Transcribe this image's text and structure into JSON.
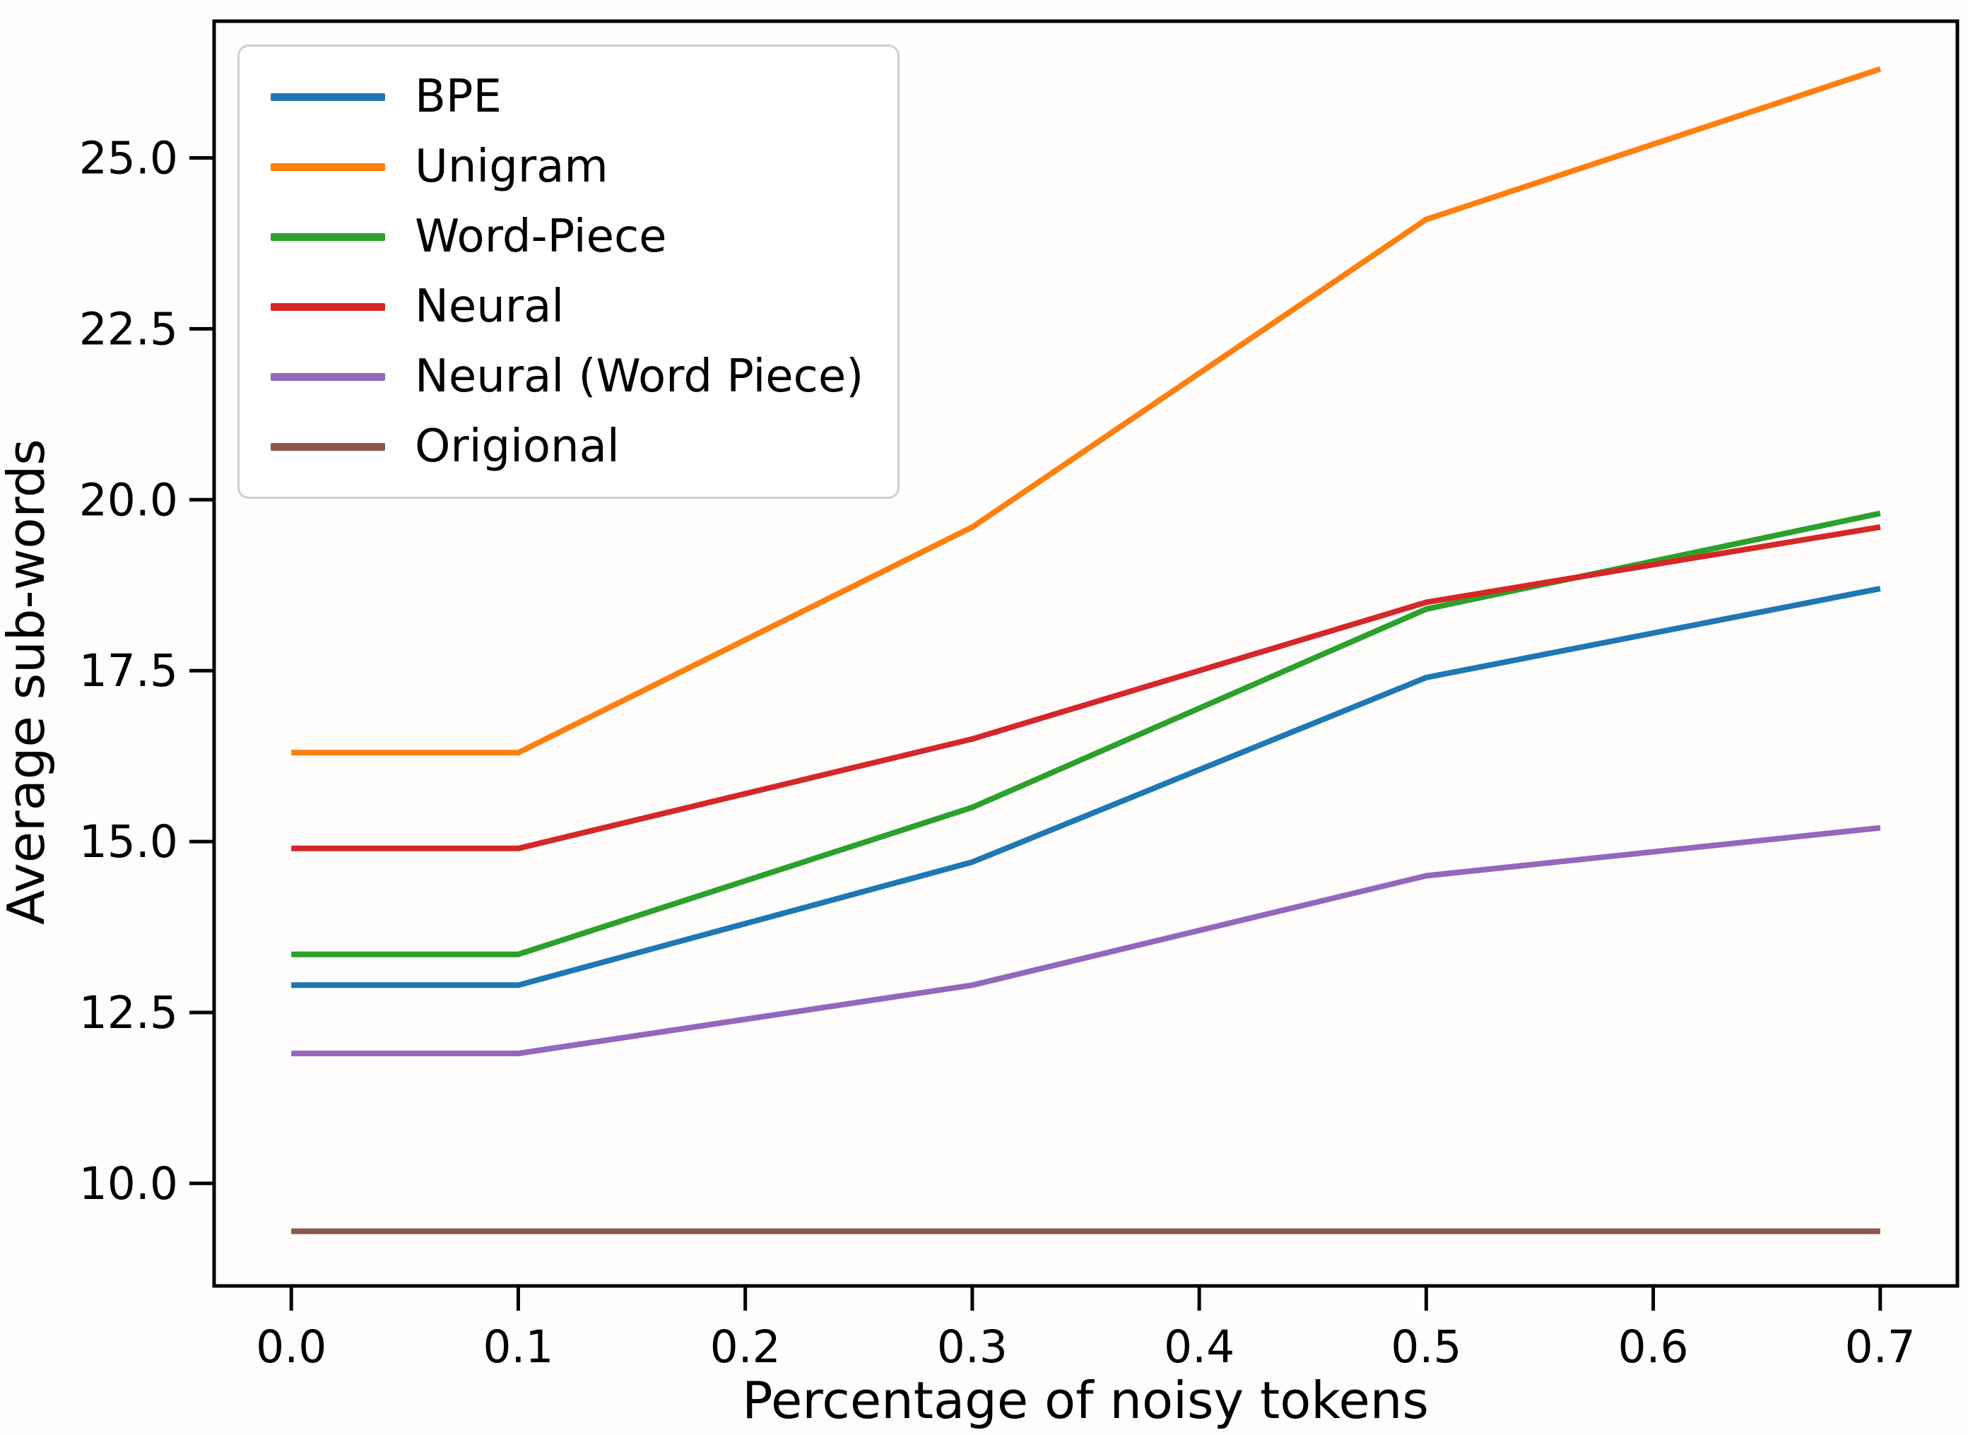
{
  "figure": {
    "background": "#ffffff",
    "axis_color": "#000000"
  },
  "chart_data": {
    "type": "line",
    "title": "",
    "xlabel": "Percentage of noisy tokens",
    "ylabel": "Average sub-words",
    "x": [
      0.0,
      0.1,
      0.3,
      0.5,
      0.7
    ],
    "series": [
      {
        "name": "BPE",
        "color": "#1f77b4",
        "values": [
          12.9,
          12.9,
          14.7,
          17.4,
          18.7
        ]
      },
      {
        "name": "Unigram",
        "color": "#ff7f0e",
        "values": [
          16.3,
          16.3,
          19.6,
          24.1,
          26.3
        ]
      },
      {
        "name": "Word-Piece",
        "color": "#2ca02c",
        "values": [
          13.35,
          13.35,
          15.5,
          18.4,
          19.8
        ]
      },
      {
        "name": "Neural",
        "color": "#d62728",
        "values": [
          14.9,
          14.9,
          16.5,
          18.5,
          19.6
        ]
      },
      {
        "name": "Neural (Word Piece)",
        "color": "#9467bd",
        "values": [
          11.9,
          11.9,
          12.9,
          14.5,
          15.2
        ]
      },
      {
        "name": "Origional",
        "color": "#8c564b",
        "values": [
          9.3,
          9.3,
          9.3,
          9.3,
          9.3
        ]
      }
    ],
    "xticks": [
      "0.0",
      "0.1",
      "0.2",
      "0.3",
      "0.4",
      "0.5",
      "0.6",
      "0.7"
    ],
    "xtick_values": [
      0.0,
      0.1,
      0.2,
      0.3,
      0.4,
      0.5,
      0.6,
      0.7
    ],
    "yticks": [
      "10.0",
      "12.5",
      "15.0",
      "17.5",
      "20.0",
      "22.5",
      "25.0"
    ],
    "ytick_values": [
      10.0,
      12.5,
      15.0,
      17.5,
      20.0,
      22.5,
      25.0
    ],
    "xlim": [
      -0.034,
      0.734
    ],
    "ylim": [
      8.5,
      27.0
    ],
    "grid": false,
    "legend_position": "upper left",
    "legend_entries": [
      "BPE",
      "Unigram",
      "Word-Piece",
      "Neural",
      "Neural (Word Piece)",
      "Origional"
    ]
  }
}
